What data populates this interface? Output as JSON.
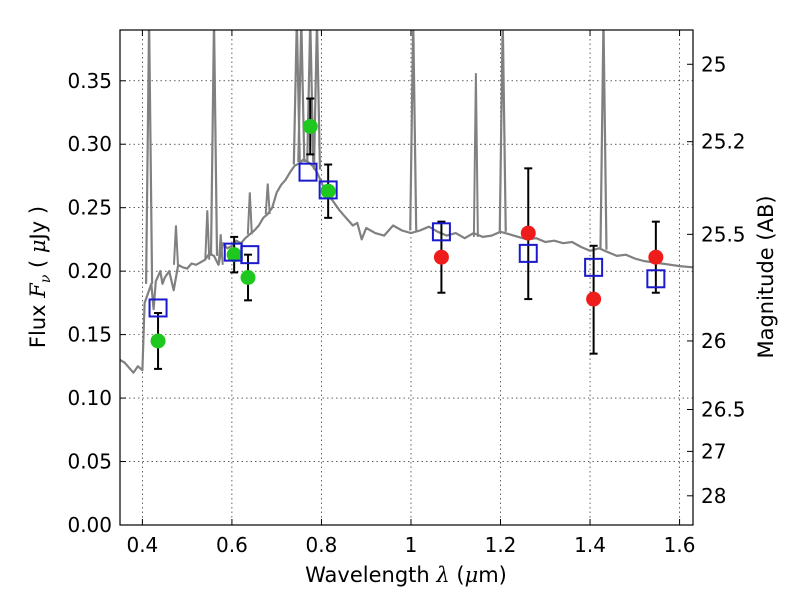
{
  "chart_data": {
    "type": "scatter",
    "title": "",
    "xlabel": "Wavelength  λ (μm)",
    "xlabel_parts": [
      "Wavelength ",
      "λ",
      " (",
      "μ",
      "m)"
    ],
    "ylabel": "Flux  Fν  ( μJy )",
    "ylabel_parts": [
      "Flux  ",
      "F",
      "ν",
      "  ( ",
      "μ",
      "Jy )"
    ],
    "y2label": "Magnitude (AB)",
    "xlim": [
      0.35,
      1.63
    ],
    "ylim": [
      0.0,
      0.39
    ],
    "grid": true,
    "grid_style": "dotted",
    "xticks": [
      0.4,
      0.6,
      0.8,
      1.0,
      1.2,
      1.4,
      1.6
    ],
    "xtick_labels": [
      "0.4",
      "0.6",
      "0.8",
      "1",
      "1.2",
      "1.4",
      "1.6"
    ],
    "yticks": [
      0.0,
      0.05,
      0.1,
      0.15,
      0.2,
      0.25,
      0.3,
      0.35
    ],
    "ytick_labels": [
      "0.00",
      "0.05",
      "0.10",
      "0.15",
      "0.20",
      "0.25",
      "0.30",
      "0.35"
    ],
    "y2ticks": [
      {
        "label": "25",
        "flux": 0.363
      },
      {
        "label": "25.2",
        "flux": 0.302
      },
      {
        "label": "25.5",
        "flux": 0.229
      },
      {
        "label": "26",
        "flux": 0.145
      },
      {
        "label": "26.5",
        "flux": 0.091
      },
      {
        "label": "27",
        "flux": 0.058
      },
      {
        "label": "28",
        "flux": 0.023
      }
    ],
    "colors": {
      "template": "#808080",
      "green": "#1ec81e",
      "red": "#ef1c1c",
      "model": "#1a1acc",
      "errorbar": "#000000"
    },
    "series": [
      {
        "kind": "line",
        "color": "#808080",
        "x": [
          0.35,
          0.36,
          0.38,
          0.39,
          0.4,
          0.405,
          0.41,
          0.415,
          0.42,
          0.425,
          0.43,
          0.435,
          0.44,
          0.445,
          0.45,
          0.46,
          0.47,
          0.48,
          0.49,
          0.5,
          0.51,
          0.52,
          0.53,
          0.54,
          0.55,
          0.56,
          0.57,
          0.58,
          0.59,
          0.6,
          0.61,
          0.62,
          0.63,
          0.64,
          0.65,
          0.66,
          0.67,
          0.68,
          0.69,
          0.7,
          0.71,
          0.72,
          0.73,
          0.74,
          0.75,
          0.76,
          0.77,
          0.78,
          0.79,
          0.8,
          0.81,
          0.82,
          0.83,
          0.84,
          0.85,
          0.86,
          0.87,
          0.88,
          0.89,
          0.9,
          0.92,
          0.94,
          0.96,
          0.98,
          1.0,
          1.02,
          1.04,
          1.06,
          1.08,
          1.1,
          1.12,
          1.14,
          1.16,
          1.18,
          1.2,
          1.22,
          1.24,
          1.26,
          1.28,
          1.3,
          1.32,
          1.34,
          1.36,
          1.38,
          1.4,
          1.42,
          1.44,
          1.46,
          1.48,
          1.5,
          1.52,
          1.54,
          1.56,
          1.58,
          1.6,
          1.63
        ],
        "y": [
          0.13,
          0.128,
          0.12,
          0.125,
          0.122,
          0.175,
          0.18,
          0.185,
          0.19,
          0.17,
          0.192,
          0.196,
          0.2,
          0.19,
          0.195,
          0.2,
          0.185,
          0.205,
          0.203,
          0.202,
          0.206,
          0.205,
          0.207,
          0.209,
          0.214,
          0.212,
          0.205,
          0.222,
          0.218,
          0.22,
          0.224,
          0.222,
          0.226,
          0.229,
          0.232,
          0.236,
          0.242,
          0.245,
          0.25,
          0.262,
          0.268,
          0.272,
          0.278,
          0.283,
          0.285,
          0.288,
          0.286,
          0.283,
          0.278,
          0.27,
          0.262,
          0.258,
          0.253,
          0.248,
          0.244,
          0.24,
          0.236,
          0.238,
          0.225,
          0.234,
          0.23,
          0.228,
          0.236,
          0.232,
          0.23,
          0.232,
          0.235,
          0.231,
          0.228,
          0.23,
          0.226,
          0.23,
          0.227,
          0.228,
          0.231,
          0.229,
          0.227,
          0.225,
          0.226,
          0.223,
          0.224,
          0.222,
          0.223,
          0.219,
          0.216,
          0.218,
          0.215,
          0.212,
          0.213,
          0.21,
          0.208,
          0.207,
          0.206,
          0.205,
          0.204,
          0.203
        ]
      },
      {
        "kind": "points",
        "color": "#1ec81e",
        "marker": "circle",
        "x": [
          0.435,
          0.605,
          0.636,
          0.775,
          0.815
        ],
        "y": [
          0.145,
          0.213,
          0.195,
          0.314,
          0.263
        ]
      },
      {
        "kind": "points",
        "color": "#ef1c1c",
        "marker": "circle",
        "x": [
          1.068,
          1.262,
          1.408,
          1.547
        ],
        "y": [
          0.211,
          0.23,
          0.178,
          0.211
        ]
      },
      {
        "kind": "points",
        "color": "#1a1acc",
        "marker": "open-square",
        "x": [
          0.435,
          0.603,
          0.64,
          0.77,
          0.815,
          1.068,
          1.262,
          1.408,
          1.547
        ],
        "y": [
          0.171,
          0.215,
          0.213,
          0.278,
          0.264,
          0.231,
          0.214,
          0.203,
          0.194
        ]
      }
    ],
    "errorbars": [
      {
        "x": 0.435,
        "lo": 0.123,
        "hi": 0.167
      },
      {
        "x": 0.605,
        "lo": 0.199,
        "hi": 0.227
      },
      {
        "x": 0.636,
        "lo": 0.177,
        "hi": 0.213
      },
      {
        "x": 0.775,
        "lo": 0.292,
        "hi": 0.336
      },
      {
        "x": 0.815,
        "lo": 0.242,
        "hi": 0.284
      },
      {
        "x": 1.068,
        "lo": 0.183,
        "hi": 0.239
      },
      {
        "x": 1.262,
        "lo": 0.178,
        "hi": 0.281
      },
      {
        "x": 1.408,
        "lo": 0.135,
        "hi": 0.22
      },
      {
        "x": 1.547,
        "lo": 0.183,
        "hi": 0.239
      }
    ]
  }
}
